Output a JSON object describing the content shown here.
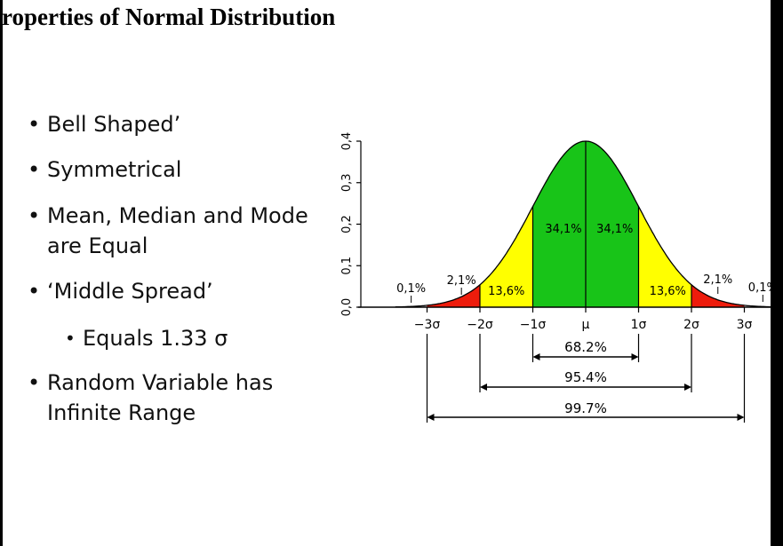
{
  "slide": {
    "title": "roperties of Normal Distribution",
    "bullets": [
      {
        "text": "Bell Shaped’"
      },
      {
        "text": "Symmetrical"
      },
      {
        "text": "Mean, Median and Mode",
        "text2": "are Equal"
      },
      {
        "text": " ‘Middle Spread’"
      },
      {
        "text": "Equals 1.33 σ"
      },
      {
        "text": "Random Variable  has",
        "text2": "Infinite Range"
      }
    ]
  },
  "chart_data": {
    "type": "area",
    "title": "",
    "xlabel": "",
    "ylabel": "",
    "x_tick_labels": [
      "−3σ",
      "−2σ",
      "−1σ",
      "μ",
      "1σ",
      "2σ",
      "3σ"
    ],
    "x_tick_values": [
      -3,
      -2,
      -1,
      0,
      1,
      2,
      3
    ],
    "y_tick_labels": [
      "0,0",
      "0,1",
      "0,2",
      "0,3",
      "0,4"
    ],
    "y_tick_values": [
      0,
      0.1,
      0.2,
      0.3,
      0.4
    ],
    "ylim": [
      0,
      0.4
    ],
    "regions": [
      {
        "from": -3.6,
        "to": -3,
        "label": "0,1%",
        "color": "#ffffff"
      },
      {
        "from": -3,
        "to": -2,
        "label": "2,1%",
        "color": "#ee1c0c"
      },
      {
        "from": -2,
        "to": -1,
        "label": "13,6%",
        "color": "#ffff00"
      },
      {
        "from": -1,
        "to": 0,
        "label": "34,1%",
        "color": "#18c418"
      },
      {
        "from": 0,
        "to": 1,
        "label": "34,1%",
        "color": "#18c418"
      },
      {
        "from": 1,
        "to": 2,
        "label": "13,6%",
        "color": "#ffff00"
      },
      {
        "from": 2,
        "to": 3,
        "label": "2,1%",
        "color": "#ee1c0c"
      },
      {
        "from": 3,
        "to": 3.6,
        "label": "0,1%",
        "color": "#ffffff"
      }
    ],
    "intervals": [
      {
        "from": -1,
        "to": 1,
        "label": "68.2%"
      },
      {
        "from": -2,
        "to": 2,
        "label": "95.4%"
      },
      {
        "from": -3,
        "to": 3,
        "label": "99.7%"
      }
    ]
  }
}
